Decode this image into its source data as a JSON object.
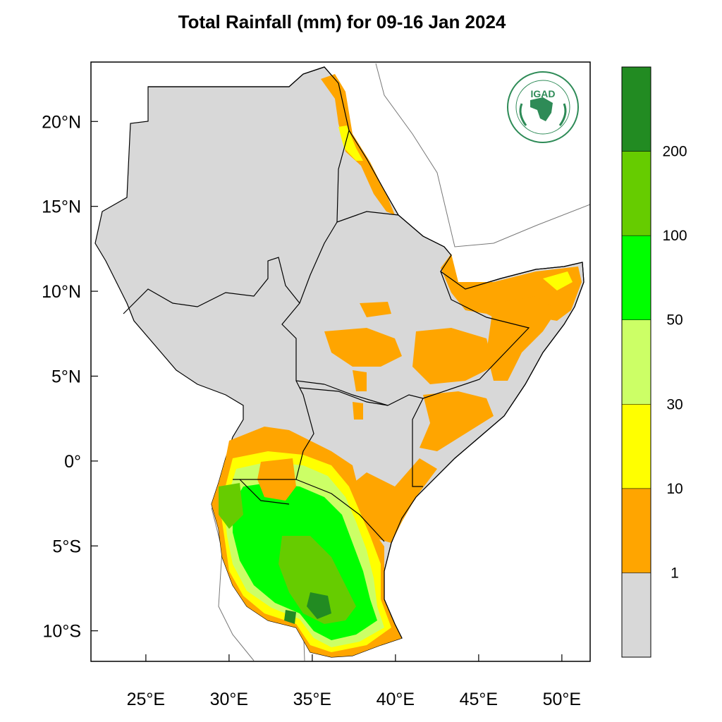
{
  "title": "Total Rainfall (mm) for 09-16 Jan 2024",
  "logo": {
    "text": "IGAD",
    "ring_top": "INTERGOVERNMENTAL AUTHORITY ON DEVELOPMENT",
    "ring_bottom": "AUTORITE INTERGOUVERNEMENTALE POUR LE DEVELOPPEMENT"
  },
  "axes": {
    "x_ticks": [
      {
        "value": 25,
        "label": "25°E"
      },
      {
        "value": 30,
        "label": "30°E"
      },
      {
        "value": 35,
        "label": "35°E"
      },
      {
        "value": 40,
        "label": "40°E"
      },
      {
        "value": 45,
        "label": "45°E"
      },
      {
        "value": 50,
        "label": "50°E"
      }
    ],
    "y_ticks": [
      {
        "value": 20,
        "label": "20°N"
      },
      {
        "value": 15,
        "label": "15°N"
      },
      {
        "value": 10,
        "label": "10°N"
      },
      {
        "value": 5,
        "label": "5°N"
      },
      {
        "value": 0,
        "label": "0°"
      },
      {
        "value": -5,
        "label": "5°S"
      },
      {
        "value": -10,
        "label": "10°S"
      }
    ],
    "lon_range": [
      21.7,
      51.7
    ],
    "lat_range": [
      -11.8,
      23.5
    ]
  },
  "colorbar": {
    "bins": [
      {
        "color": "#d8d8d8"
      },
      {
        "color": "#ffa500",
        "upper": "1"
      },
      {
        "color": "#ffff00",
        "upper": "10"
      },
      {
        "color": "#ccff66",
        "upper": "30"
      },
      {
        "color": "#00ff00",
        "upper": "50"
      },
      {
        "color": "#66cc00",
        "upper": "100"
      },
      {
        "color": "#228b22",
        "upper": "200"
      }
    ]
  },
  "colors": {
    "land_no_rain": "#d8d8d8",
    "orange": "#ffa500",
    "yellow": "#ffff00",
    "light_green": "#ccff66",
    "green": "#00ff00",
    "mid_green": "#66cc00",
    "dark_green": "#228b22"
  }
}
